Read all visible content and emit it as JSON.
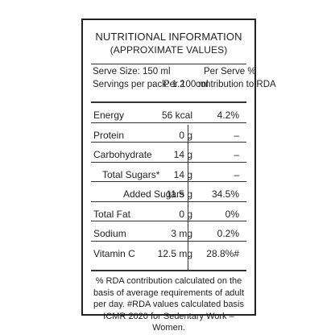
{
  "title": "NUTRITIONAL INFORMATION",
  "subtitle": "(APPROXIMATE VALUES)",
  "serve_size": "Serve Size: 150 ml",
  "servings_per_pack": "Servings per pack: 1.2",
  "col_per100": "Per 100 ml",
  "col_serve_line1": "Per Serve %",
  "col_serve_line2": "contribution to RDA",
  "rows": [
    {
      "name": "Energy",
      "per100": "56 kcal",
      "rda": "4.2%"
    },
    {
      "name": "Protein",
      "per100": "0 g",
      "rda": "–"
    },
    {
      "name": "Carbohydrate",
      "per100": "14 g",
      "rda": "–"
    },
    {
      "name": "Total Sugars*",
      "per100": "14 g",
      "rda": "–"
    },
    {
      "name": "Added Sugars",
      "per100": "11.5 g",
      "rda": "34.5%"
    },
    {
      "name": "Total Fat",
      "per100": "0 g",
      "rda": "0%"
    },
    {
      "name": "Sodium",
      "per100": "3 mg",
      "rda": "0.2%"
    },
    {
      "name": "Vitamin C",
      "per100": "12.5 mg",
      "rda": "28.8%#"
    }
  ],
  "footer": "% RDA contribution calculated on the basis of average requirements of adult per day. #RDA values calculated basis ICMR 2020 for Sedentary Work – Women."
}
